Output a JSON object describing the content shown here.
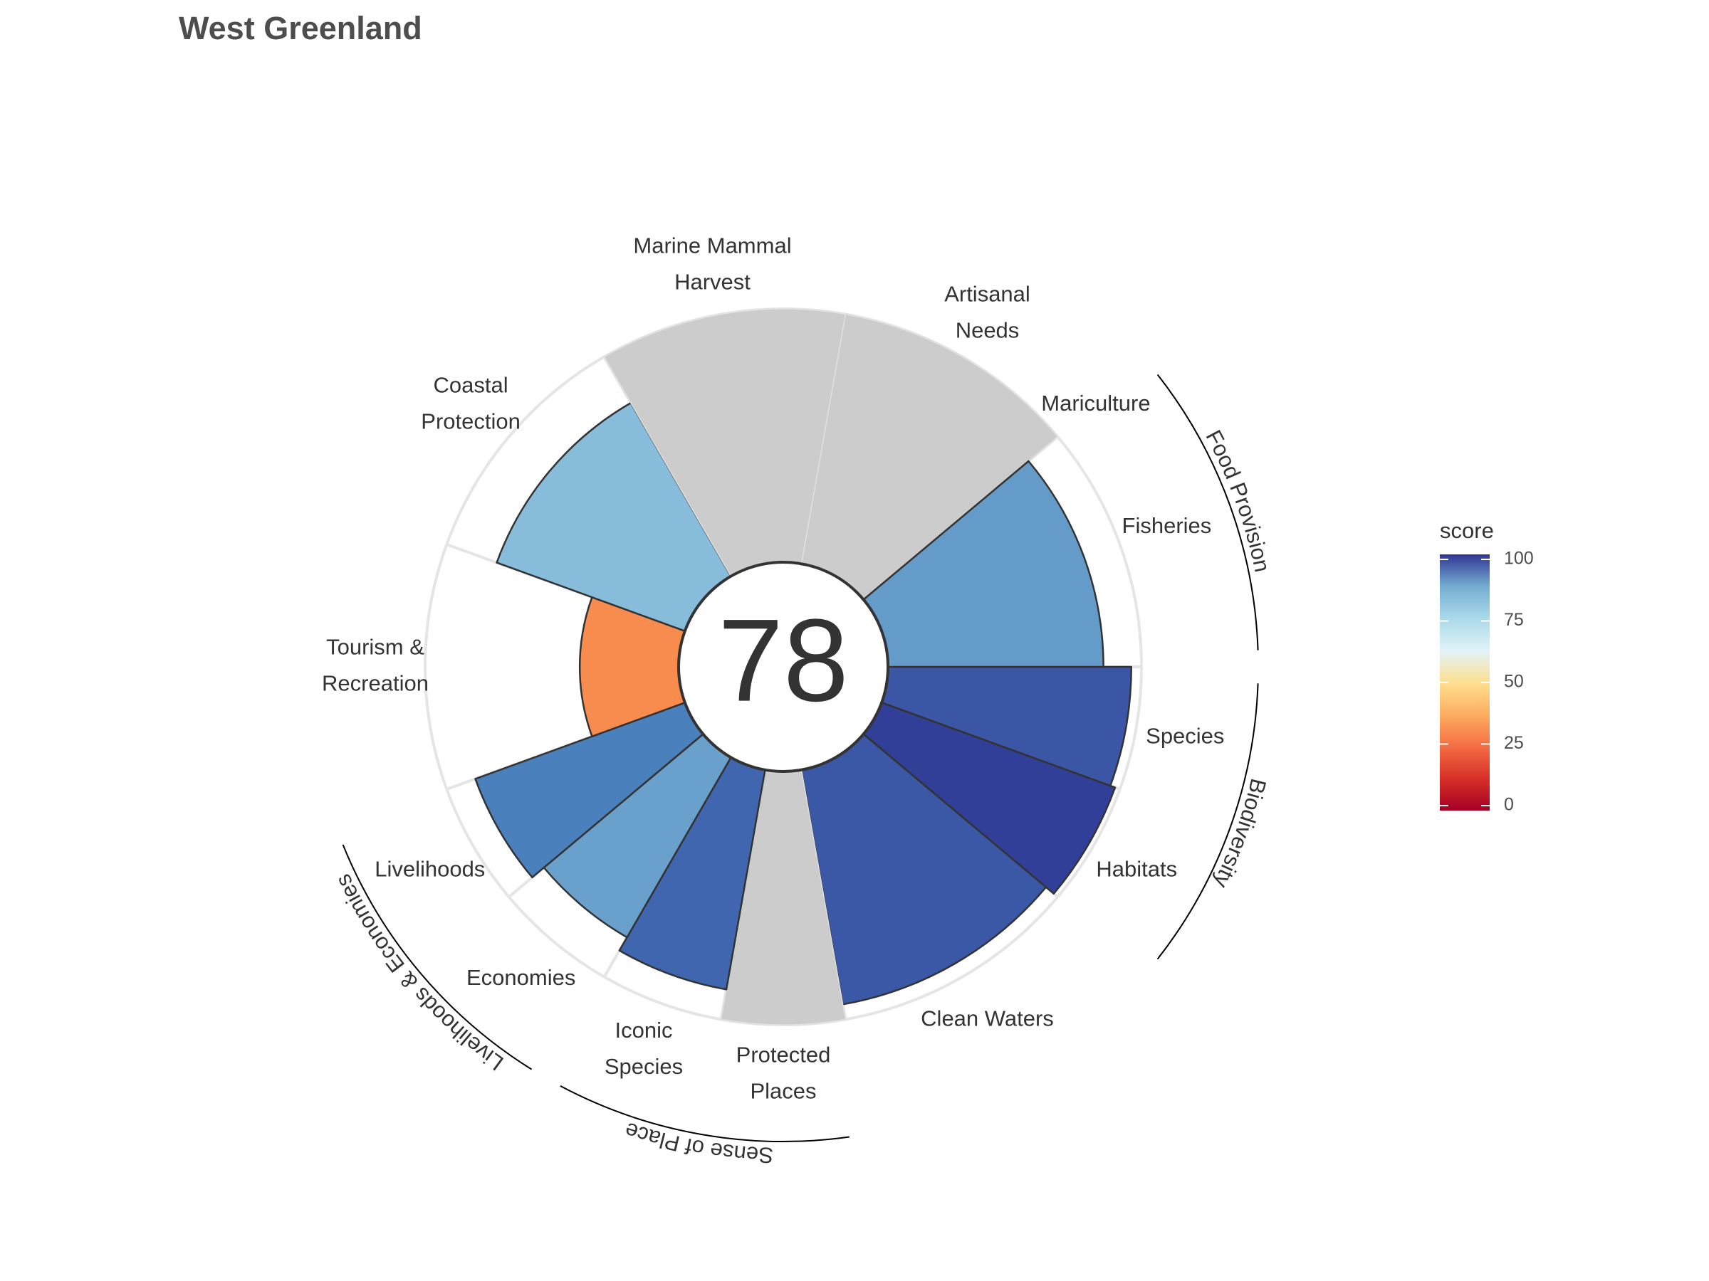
{
  "chart_data": {
    "type": "flower",
    "title": "West Greenland",
    "center_score": 78,
    "categories": [
      [
        "Species"
      ],
      [
        "Habitats"
      ],
      [
        "Clean Waters"
      ],
      [
        "Protected",
        "Places"
      ],
      [
        "Iconic",
        "Species"
      ],
      [
        "Economies"
      ],
      [
        "Livelihoods"
      ],
      [
        "Tourism &",
        "Recreation"
      ],
      [
        "Coastal",
        "Protection"
      ],
      [
        "Marine Mammal",
        "Harvest"
      ],
      [
        "Artisanal",
        "Needs"
      ],
      [
        "Mariculture"
      ],
      [
        "Fisheries"
      ]
    ],
    "values": [
      96,
      98,
      94,
      null,
      88,
      82,
      88,
      39,
      79,
      null,
      null,
      null,
      85
    ],
    "weights": [
      20,
      20,
      40,
      20,
      20,
      20,
      20,
      40,
      40,
      40,
      40,
      0,
      40
    ],
    "colors": [
      "#3b56a4",
      "#323f98",
      "#3a58a6",
      "#cccccc",
      "#3f66ae",
      "#6aa0cc",
      "#4a80bb",
      "#f88c4f",
      "#87bcda",
      "#cccccc",
      "#cccccc",
      "#cccccc",
      "#649bc8"
    ],
    "groups": [
      "Biodiversity",
      "Biodiversity",
      null,
      "Sense of Place",
      "Sense of Place",
      "Livelihoods & Economies",
      "Livelihoods & Economies",
      null,
      null,
      null,
      null,
      "Food Provision",
      "Food Provision"
    ],
    "rlim": [
      0,
      100
    ],
    "colorbar": {
      "title": "score",
      "lim": [
        0,
        100
      ],
      "ticks": [
        0,
        25,
        50,
        75,
        100
      ],
      "colors": [
        "#a50026",
        "#d73027",
        "#f46d43",
        "#fdae61",
        "#fee090",
        "#e0f3f8",
        "#abd9e9",
        "#74add1",
        "#313695"
      ]
    }
  }
}
